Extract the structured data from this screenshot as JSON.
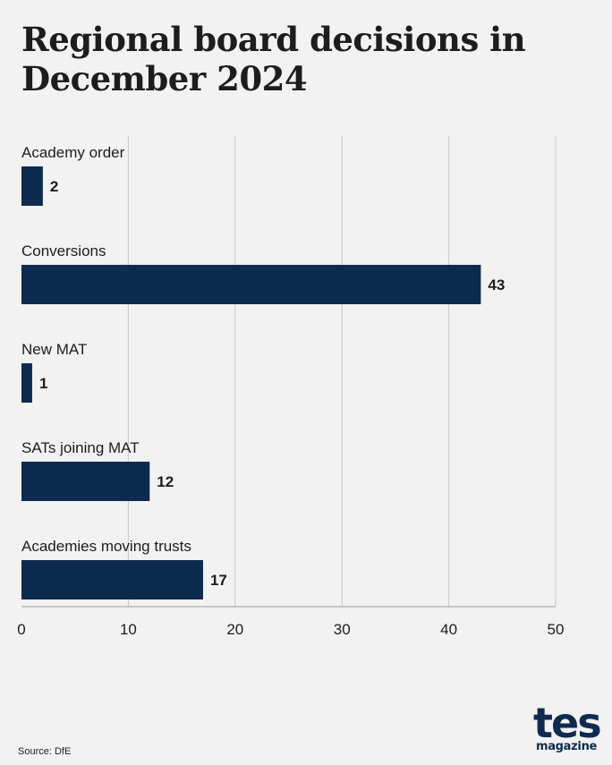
{
  "chart_data": {
    "type": "bar",
    "orientation": "horizontal",
    "title": "Regional board decisions in December 2024",
    "categories": [
      "Academy order",
      "Conversions",
      "New MAT",
      "SATs joining MAT",
      "Academies moving trusts"
    ],
    "values": [
      2,
      43,
      1,
      12,
      17
    ],
    "xlim": [
      0,
      50
    ],
    "xticks": [
      0,
      10,
      20,
      30,
      40,
      50
    ],
    "grid": true,
    "bar_color": "#0d2b4e"
  },
  "footer": {
    "source": "Source: DfE"
  },
  "logo": {
    "main": "tes",
    "sub": "magazine",
    "color": "#0d2b4e"
  }
}
